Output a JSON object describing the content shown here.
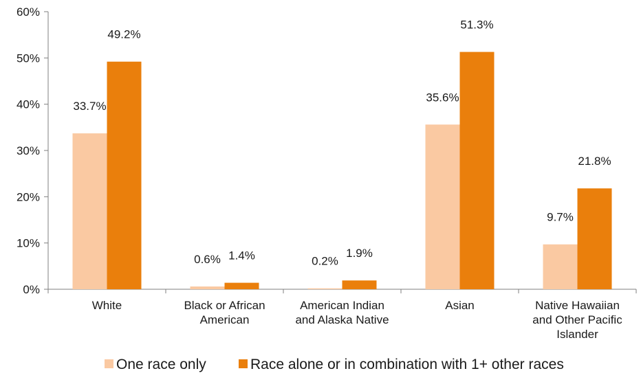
{
  "chart_data": {
    "type": "bar",
    "categories": [
      [
        "White"
      ],
      [
        "Black or African",
        "American"
      ],
      [
        "American Indian",
        "and Alaska Native"
      ],
      [
        "Asian"
      ],
      [
        "Native Hawaiian",
        "and Other Pacific",
        "Islander"
      ]
    ],
    "series": [
      {
        "name": "One race only",
        "color": "#fac9a2",
        "values": [
          33.7,
          0.6,
          0.2,
          35.6,
          9.7
        ],
        "labels": [
          "33.7%",
          "0.6%",
          "0.2%",
          "35.6%",
          "9.7%"
        ]
      },
      {
        "name": "Race alone or in combination with 1+ other races",
        "color": "#ea7f0c",
        "values": [
          49.2,
          1.4,
          1.9,
          51.3,
          21.8
        ],
        "labels": [
          "49.2%",
          "1.4%",
          "1.9%",
          "51.3%",
          "21.8%"
        ]
      }
    ],
    "y_ticks": [
      "0%",
      "10%",
      "20%",
      "30%",
      "40%",
      "50%",
      "60%"
    ],
    "ylim": [
      0,
      60
    ],
    "grid": false,
    "legend_position": "bottom"
  }
}
